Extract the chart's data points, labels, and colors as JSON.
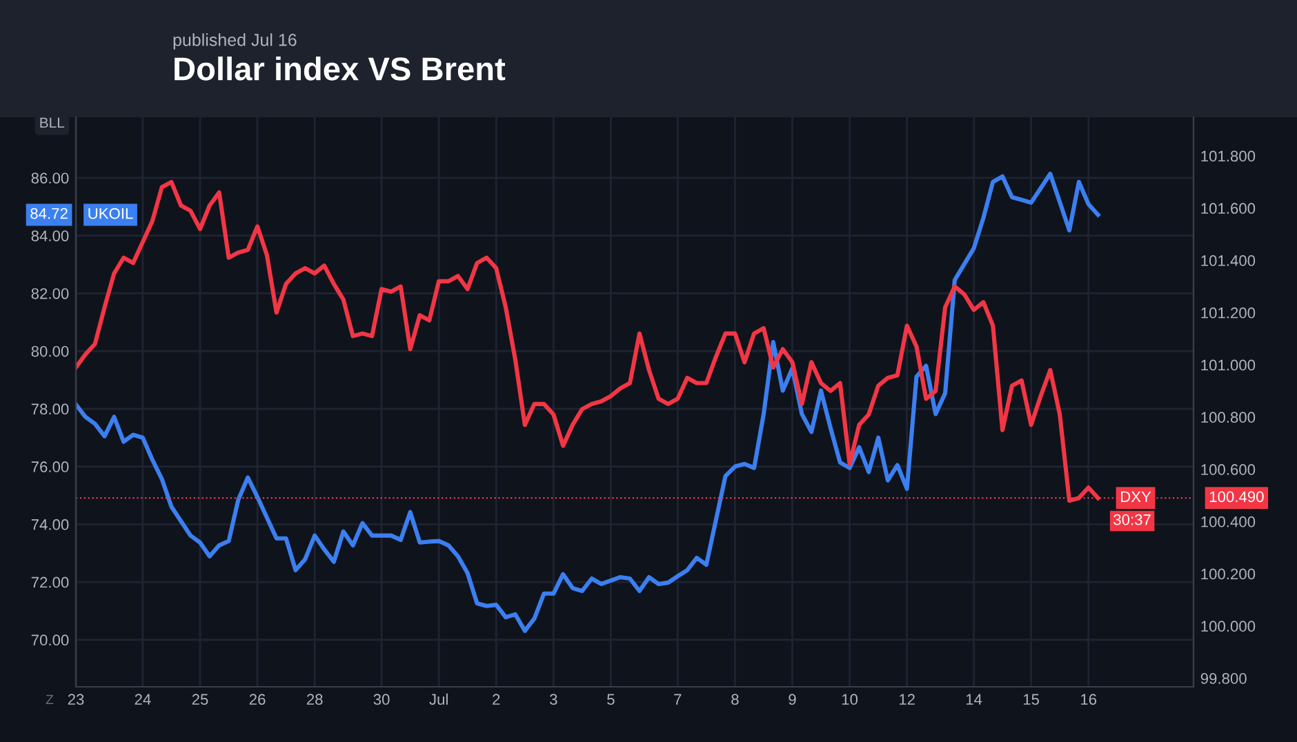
{
  "chart_data": {
    "type": "line",
    "title": "Dollar index VS Brent",
    "subtitle": "published Jul 16",
    "ylabel": "BLL",
    "categories": [
      "23",
      null,
      null,
      null,
      null,
      null,
      null,
      "24",
      null,
      null,
      null,
      null,
      null,
      "25",
      null,
      null,
      null,
      null,
      null,
      "26",
      null,
      null,
      null,
      null,
      null,
      "28",
      null,
      null,
      null,
      null,
      null,
      null,
      "30",
      null,
      null,
      null,
      null,
      null,
      "Jul",
      null,
      null,
      null,
      null,
      null,
      "2",
      null,
      null,
      null,
      null,
      null,
      "3",
      null,
      null,
      null,
      null,
      null,
      "5",
      null,
      null,
      null,
      null,
      null,
      null,
      "7",
      null,
      null,
      null,
      null,
      null,
      "8",
      null,
      null,
      null,
      null,
      null,
      "9",
      null,
      null,
      null,
      null,
      null,
      "10",
      null,
      null,
      null,
      null,
      null,
      "12",
      null,
      null,
      null,
      null,
      null,
      null,
      "14",
      null,
      null,
      null,
      null,
      null,
      "15",
      null,
      null,
      null,
      null,
      null,
      "16",
      null,
      null,
      null,
      null,
      null,
      null,
      null,
      null,
      null,
      null,
      null
    ],
    "ylim": [
      68.37,
      88.1
    ],
    "yticks": [
      {
        "value": 70,
        "label": "70.00"
      },
      {
        "value": 72,
        "label": "72.00"
      },
      {
        "value": 74,
        "label": "74.00"
      },
      {
        "value": 76,
        "label": "76.00"
      },
      {
        "value": 78,
        "label": "78.00"
      },
      {
        "value": 80,
        "label": "80.00"
      },
      {
        "value": 82,
        "label": "82.00"
      },
      {
        "value": 84,
        "label": "84.00"
      },
      {
        "value": 86,
        "label": "86.00"
      }
    ],
    "y2lim": [
      99.767,
      101.948
    ],
    "y2ticks": [
      {
        "value": 99.8,
        "label": "99.800"
      },
      {
        "value": 100.0,
        "label": "100.000"
      },
      {
        "value": 100.2,
        "label": "100.200"
      },
      {
        "value": 100.4,
        "label": "100.400"
      },
      {
        "value": 100.6,
        "label": "100.600"
      },
      {
        "value": 100.8,
        "label": "100.800"
      },
      {
        "value": 101.0,
        "label": "101.000"
      },
      {
        "value": 101.2,
        "label": "101.200"
      },
      {
        "value": 101.4,
        "label": "101.400"
      },
      {
        "value": 101.6,
        "label": "101.600"
      },
      {
        "value": 101.8,
        "label": "101.800"
      }
    ],
    "grid": true,
    "legend": "top left",
    "series": [
      {
        "name": "UKOIL",
        "color": "#3b7ff0",
        "values": [
          78.15,
          77.72,
          77.48,
          77.05,
          77.72,
          76.86,
          77.1,
          77.0,
          76.24,
          75.57,
          74.61,
          74.11,
          73.61,
          73.37,
          72.89,
          73.27,
          73.42,
          74.85,
          75.62,
          74.95,
          74.23,
          73.51,
          73.51,
          72.41,
          72.79,
          73.61,
          73.13,
          72.7,
          73.75,
          73.27,
          74.04,
          73.61,
          73.61,
          73.61,
          73.46,
          74.42,
          73.37,
          73.4,
          73.42,
          73.27,
          72.89,
          72.31,
          71.26,
          71.17,
          71.21,
          70.78,
          70.88,
          70.31,
          70.74,
          71.6,
          71.6,
          72.27,
          71.79,
          71.69,
          72.12,
          71.93,
          72.05,
          72.17,
          72.12,
          71.69,
          72.17,
          71.93,
          71.98,
          72.2,
          72.41,
          72.84,
          72.6,
          74.14,
          75.67,
          76.0,
          76.09,
          75.95,
          77.82,
          80.31,
          78.63,
          79.4,
          77.82,
          77.2,
          78.63,
          77.34,
          76.14,
          75.95,
          76.67,
          75.81,
          77.0,
          75.52,
          76.05,
          75.23,
          79.11,
          79.49,
          77.82,
          78.54,
          82.46,
          83.01,
          83.56,
          84.61,
          85.86,
          86.05,
          85.33,
          85.24,
          85.14,
          85.64,
          86.14,
          85.16,
          84.18,
          85.86,
          85.09,
          84.72,
          null,
          null,
          null,
          null,
          null,
          null,
          null,
          null,
          null,
          null
        ]
      },
      {
        "name": "DXY",
        "color": "#f23645",
        "axis": "y2",
        "values": [
          100.99,
          101.04,
          101.08,
          101.22,
          101.35,
          101.41,
          101.39,
          101.47,
          101.55,
          101.68,
          101.7,
          101.61,
          101.59,
          101.52,
          101.61,
          101.66,
          101.41,
          101.43,
          101.44,
          101.53,
          101.42,
          101.2,
          101.31,
          101.35,
          101.37,
          101.35,
          101.38,
          101.31,
          101.25,
          101.11,
          101.12,
          101.11,
          101.29,
          101.28,
          101.3,
          101.06,
          101.19,
          101.17,
          101.32,
          101.32,
          101.34,
          101.29,
          101.39,
          101.41,
          101.37,
          101.22,
          101.02,
          100.77,
          100.85,
          100.85,
          100.81,
          100.69,
          100.77,
          100.83,
          100.85,
          100.86,
          100.88,
          100.91,
          100.93,
          101.12,
          100.98,
          100.87,
          100.85,
          100.87,
          100.95,
          100.93,
          100.93,
          101.03,
          101.12,
          101.12,
          101.01,
          101.12,
          101.14,
          100.99,
          101.06,
          101.01,
          100.85,
          101.01,
          100.93,
          100.9,
          100.93,
          100.62,
          100.77,
          100.81,
          100.92,
          100.95,
          100.96,
          101.15,
          101.07,
          100.87,
          100.9,
          101.22,
          101.3,
          101.27,
          101.21,
          101.24,
          101.15,
          100.75,
          100.92,
          100.94,
          100.77,
          100.88,
          100.98,
          100.81,
          100.48,
          100.49,
          100.53,
          100.49,
          null,
          null,
          null,
          null,
          null,
          null,
          null,
          null,
          null,
          null
        ]
      }
    ],
    "ref_lines": [
      {
        "axis": "y2",
        "value": 100.49,
        "label": "100.490",
        "color": "#f23645",
        "line_style": "dotted"
      }
    ],
    "annotations": [
      "84.72",
      "30:37",
      "Z"
    ]
  }
}
